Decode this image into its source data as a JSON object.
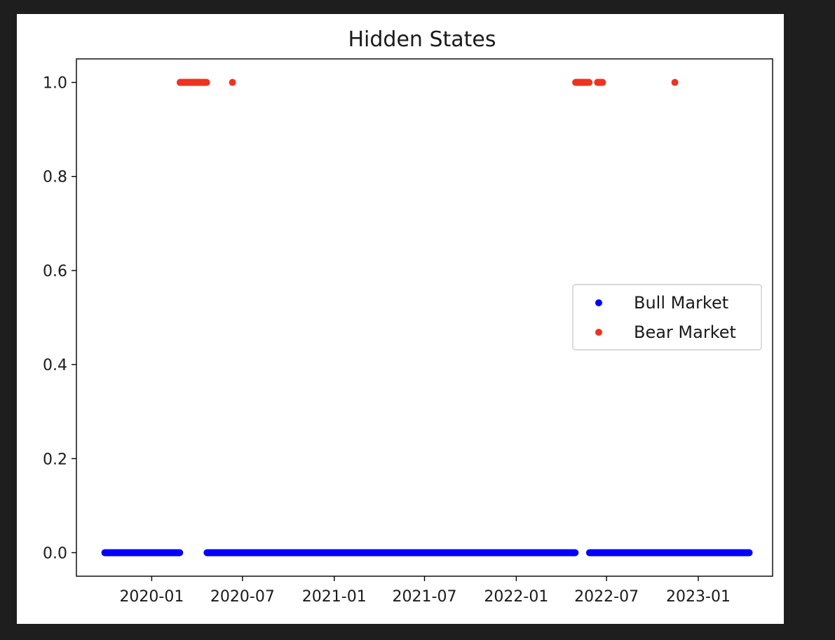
{
  "chart_data": {
    "type": "scatter",
    "title": "Hidden States",
    "xlabel": "",
    "ylabel": "",
    "x_axis_type": "date",
    "xlim": [
      "2019-08-03",
      "2023-05-30"
    ],
    "ylim": [
      -0.05,
      1.05
    ],
    "x_ticks": [
      "2020-01",
      "2020-07",
      "2021-01",
      "2021-07",
      "2022-01",
      "2022-07",
      "2023-01"
    ],
    "y_ticks": [
      "0.0",
      "0.2",
      "0.4",
      "0.6",
      "0.8",
      "1.0"
    ],
    "grid": false,
    "legend_position": "center-right",
    "series": [
      {
        "name": "Bull Market",
        "color": "#0000ff",
        "y": 0.0,
        "date_ranges": [
          [
            "2019-09-29",
            "2020-02-26"
          ],
          [
            "2020-04-21",
            "2022-04-29"
          ],
          [
            "2022-05-28",
            "2023-04-13"
          ]
        ]
      },
      {
        "name": "Bear Market",
        "color": "#ee3322",
        "y": 1.0,
        "date_ranges": [
          [
            "2020-02-27",
            "2020-04-20"
          ],
          [
            "2020-06-11",
            "2020-06-11"
          ],
          [
            "2022-04-30",
            "2022-05-27"
          ],
          [
            "2022-06-13",
            "2022-06-23"
          ],
          [
            "2022-11-15",
            "2022-11-15"
          ]
        ]
      }
    ]
  }
}
